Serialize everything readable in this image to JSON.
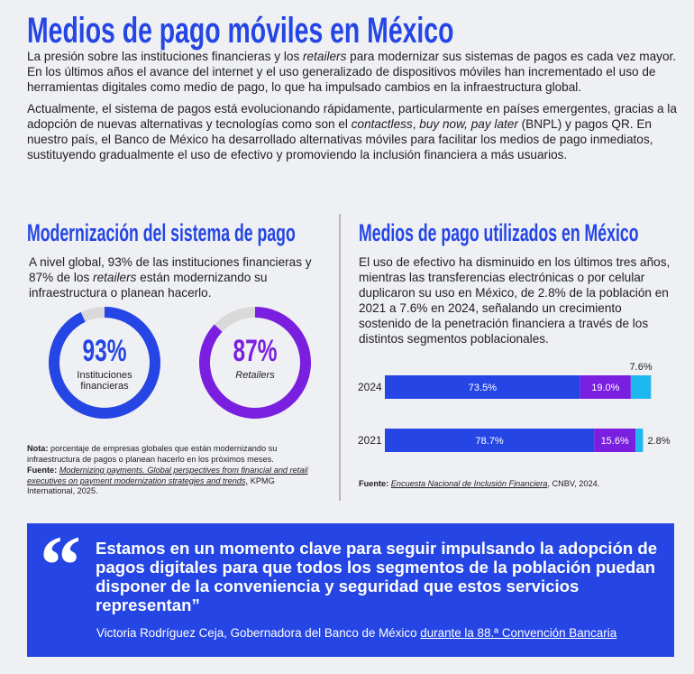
{
  "title": "Medios de pago móviles en México",
  "intro": {
    "paragraphs": [
      [
        "La presión sobre las instituciones financieras y los ",
        {
          "text": "retailers",
          "italic": true
        },
        " para modernizar sus sistemas de pagos es cada vez mayor. En los últimos años el avance del internet y el uso generalizado de dispositivos móviles han incrementado el uso de herramientas digitales como medio de pago, lo que ha impulsado cambios en la infraestructura global."
      ],
      [
        "Actualmente, el sistema de pagos está evolucionando rápidamente, particularmente en países emergentes, gracias a la adopción de nuevas alternativas y tecnologías como son el ",
        {
          "text": "contactless",
          "italic": true
        },
        ", ",
        {
          "text": "buy now, pay later",
          "italic": true
        },
        " (BNPL) y pagos QR. En nuestro país, el Banco de México ha desarrollado alternativas móviles para facilitar los medios de pago inmediatos, sustituyendo gradualmente el uso de efectivo y promoviendo la inclusión financiera a más usuarios."
      ]
    ]
  },
  "left": {
    "heading": "Modernización del sistema de pago",
    "text": [
      "A nivel global, 93% de las instituciones financieras y 87% de los ",
      {
        "text": "retailers",
        "italic": true
      },
      " están modernizando su infraestructura o planean hacerlo."
    ],
    "note": [
      {
        "text": "Nota:",
        "bold": true
      },
      " porcentaje de empresas globales que están modernizando su infraestructura de pagos o planean hacerlo en los próximos meses."
    ],
    "source": [
      {
        "text": "Fuente:",
        "bold": true
      },
      " ",
      {
        "text": "Modernizing payments. Global perspectives from financial and retail executives on payment modernization strategies and trends,",
        "italic": true,
        "link": true
      },
      " KPMG International, 2025."
    ]
  },
  "right": {
    "heading": "Medios de pago utilizados en México",
    "text": [
      "El uso de efectivo ha disminuido en los últimos tres años, mientras las transferencias electrónicas o por celular duplicaron su uso en México, de 2.8% de la población en 2021 a 7.6% en 2024, señalando un crecimiento sostenido de la penetración financiera a través de los distintos segmentos poblacionales."
    ],
    "source": [
      {
        "text": "Fuente:",
        "bold": true
      },
      " ",
      {
        "text": "Encuesta Nacional de Inclusión Financiera",
        "italic": true,
        "link": true
      },
      ", CNBV, 2024."
    ]
  },
  "chart_data": [
    {
      "type": "donut",
      "categories": [
        "Instituciones financieras"
      ],
      "values": [
        93
      ],
      "value_labels": [
        "93%"
      ],
      "color": "#2546e4",
      "track_color": "#d9d9d9",
      "italic": false
    },
    {
      "type": "donut",
      "categories": [
        "Retailers"
      ],
      "values": [
        87
      ],
      "value_labels": [
        "87%"
      ],
      "color": "#7a1fe0",
      "track_color": "#d9d9d9",
      "italic": true
    },
    {
      "type": "bar",
      "orientation": "horizontal",
      "stacked": true,
      "categories": [
        "2024",
        "2021"
      ],
      "xlim": [
        0,
        100
      ],
      "series": [
        {
          "color": "#2546e4",
          "values": [
            73.5,
            78.7
          ],
          "value_labels": [
            "73.5%",
            "78.7%"
          ]
        },
        {
          "color": "#7a1fe0",
          "values": [
            19.0,
            15.6
          ],
          "value_labels": [
            "19.0%",
            "15.6%"
          ]
        },
        {
          "color": "#1fb7ef",
          "values": [
            7.6,
            2.8
          ],
          "value_labels": [
            "7.6%",
            "2.8%"
          ]
        }
      ]
    }
  ],
  "quote": {
    "mark": "“",
    "text": "Estamos en un momento clave para seguir impulsando la adopción de pagos digitales para que todos los segmentos de la población puedan disponer de la conveniencia y seguridad que estos servicios representan”",
    "attribution": [
      "Victoria Rodríguez Ceja, Gobernadora del Banco de México ",
      {
        "text": "durante la 88.ª Convención Bancaria",
        "link": true
      }
    ]
  }
}
